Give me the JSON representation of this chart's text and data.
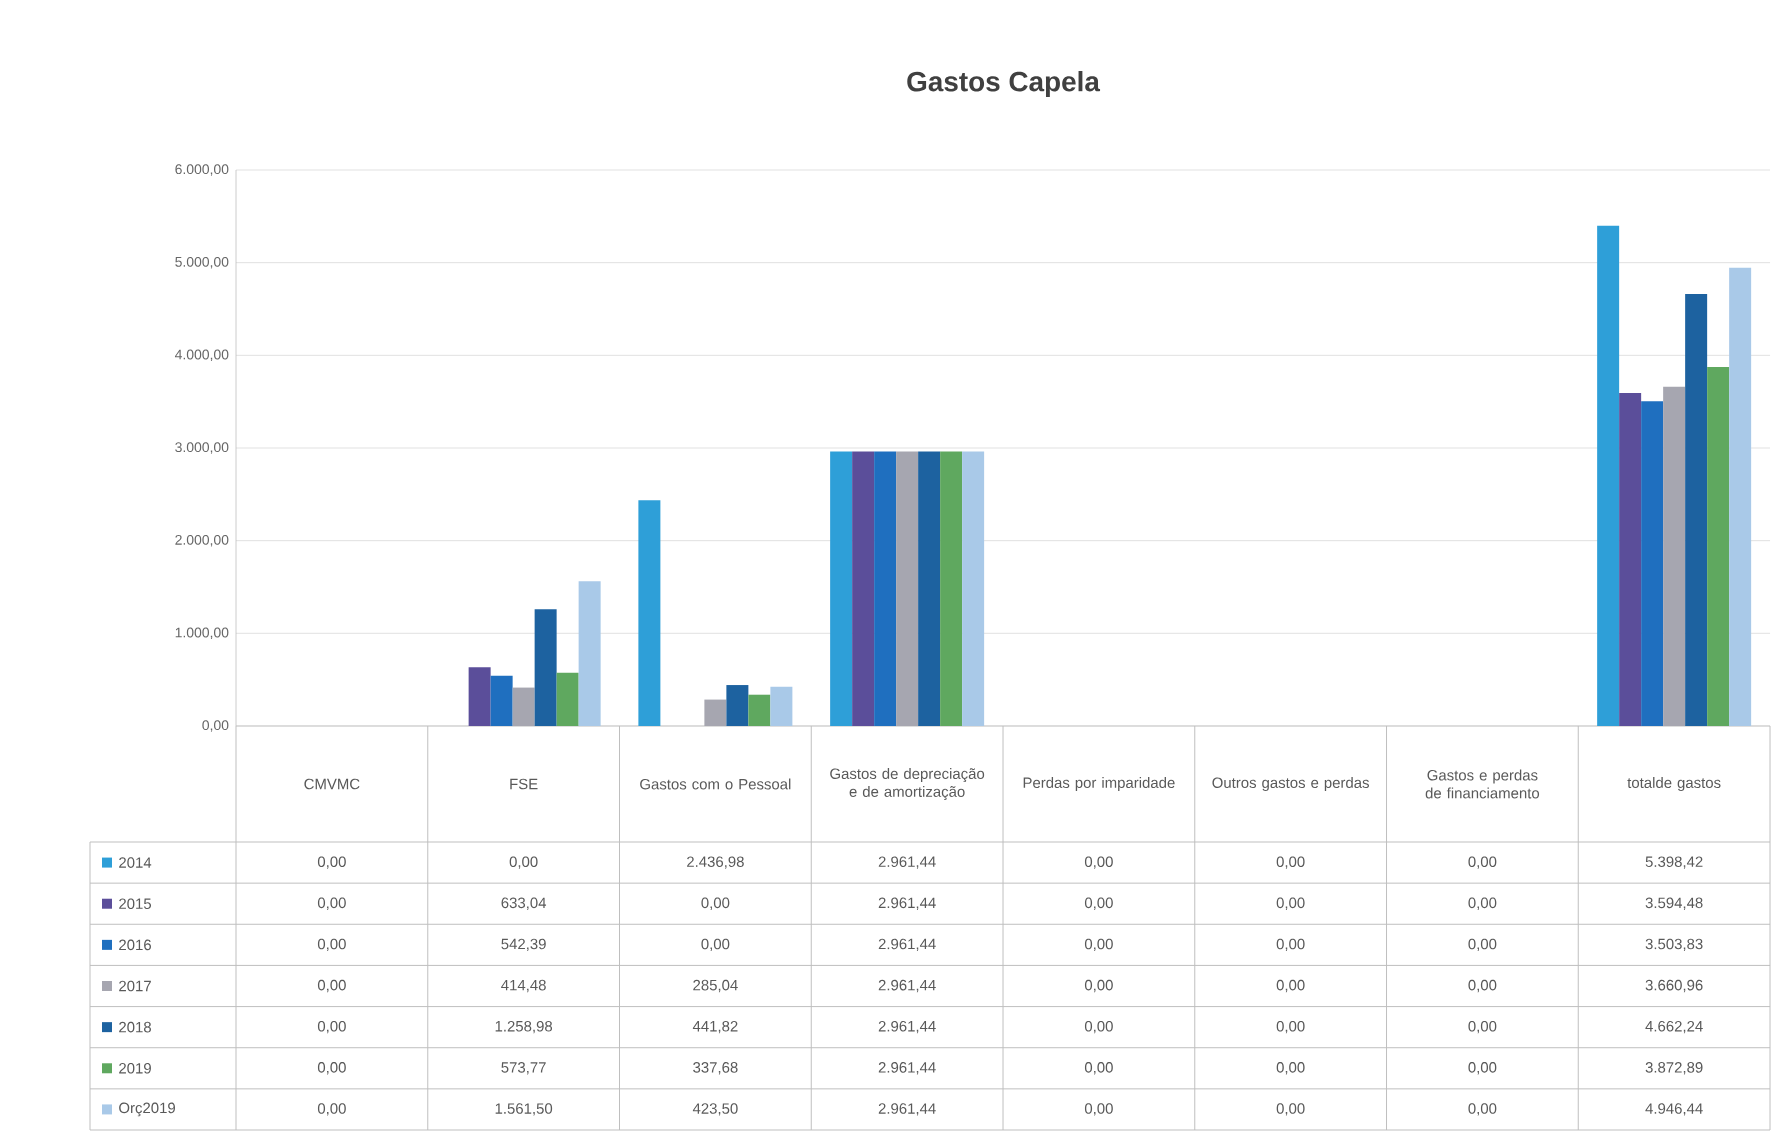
{
  "chart_data": {
    "type": "bar",
    "title": "Gastos  Capela",
    "categories": [
      "CMVMC",
      "FSE",
      "Gastos com o Pessoal",
      "Gastos de depreciação e de amortização",
      "Perdas por imparidade",
      "Outros gastos e perdas",
      "Gastos e perdas de financiamento",
      "totalde gastos"
    ],
    "series": [
      {
        "name": "2014",
        "color": "#2e9fd8",
        "values": [
          0,
          0,
          2436.98,
          2961.44,
          0,
          0,
          0,
          5398.42
        ],
        "value_labels": [
          "0,00",
          "0,00",
          "2.436,98",
          "2.961,44",
          "0,00",
          "0,00",
          "0,00",
          "5.398,42"
        ]
      },
      {
        "name": "2015",
        "color": "#5b4e9a",
        "values": [
          0,
          633.04,
          0,
          2961.44,
          0,
          0,
          0,
          3594.48
        ],
        "value_labels": [
          "0,00",
          "633,04",
          "0,00",
          "2.961,44",
          "0,00",
          "0,00",
          "0,00",
          "3.594,48"
        ]
      },
      {
        "name": "2016",
        "color": "#1f6fbf",
        "values": [
          0,
          542.39,
          0,
          2961.44,
          0,
          0,
          0,
          3503.83
        ],
        "value_labels": [
          "0,00",
          "542,39",
          "0,00",
          "2.961,44",
          "0,00",
          "0,00",
          "0,00",
          "3.503,83"
        ]
      },
      {
        "name": "2017",
        "color": "#a6a6b0",
        "values": [
          0,
          414.48,
          285.04,
          2961.44,
          0,
          0,
          0,
          3660.96
        ],
        "value_labels": [
          "0,00",
          "414,48",
          "285,04",
          "2.961,44",
          "0,00",
          "0,00",
          "0,00",
          "3.660,96"
        ]
      },
      {
        "name": "2018",
        "color": "#1d62a0",
        "values": [
          0,
          1258.98,
          441.82,
          2961.44,
          0,
          0,
          0,
          4662.24
        ],
        "value_labels": [
          "0,00",
          "1.258,98",
          "441,82",
          "2.961,44",
          "0,00",
          "0,00",
          "0,00",
          "4.662,24"
        ]
      },
      {
        "name": "2019",
        "color": "#5fa85f",
        "values": [
          0,
          573.77,
          337.68,
          2961.44,
          0,
          0,
          0,
          3872.89
        ],
        "value_labels": [
          "0,00",
          "573,77",
          "337,68",
          "2.961,44",
          "0,00",
          "0,00",
          "0,00",
          "3.872,89"
        ]
      },
      {
        "name": "Orç2019",
        "color": "#a9c9e8",
        "values": [
          0,
          1561.5,
          423.5,
          2961.44,
          0,
          0,
          0,
          4946.44
        ],
        "value_labels": [
          "0,00",
          "1.561,50",
          "423,50",
          "2.961,44",
          "0,00",
          "0,00",
          "0,00",
          "4.946,44"
        ]
      }
    ],
    "ylim": [
      0,
      6000
    ],
    "yticks": [
      {
        "value": 0,
        "label": "0,00"
      },
      {
        "value": 1000,
        "label": "1.000,00"
      },
      {
        "value": 2000,
        "label": "2.000,00"
      },
      {
        "value": 3000,
        "label": "3.000,00"
      },
      {
        "value": 4000,
        "label": "4.000,00"
      },
      {
        "value": 5000,
        "label": "5.000,00"
      },
      {
        "value": 6000,
        "label": "6.000,00"
      }
    ],
    "grid": "y",
    "legend": "bottom"
  }
}
